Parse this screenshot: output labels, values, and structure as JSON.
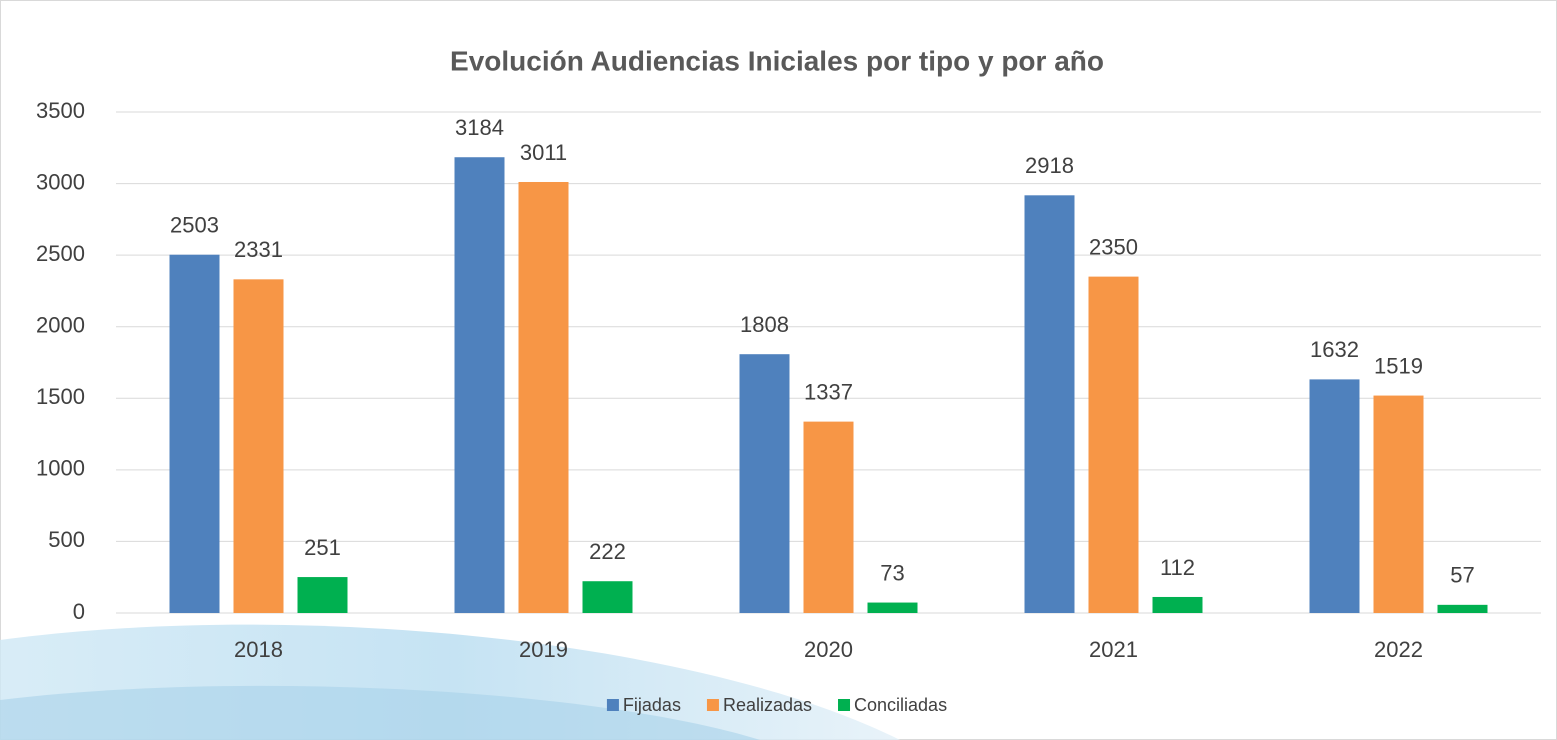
{
  "chart_data": {
    "type": "bar",
    "title": "Evolución Audiencias Iniciales por tipo y por año",
    "categories": [
      "2018",
      "2019",
      "2020",
      "2021",
      "2022"
    ],
    "series": [
      {
        "name": "Fijadas",
        "color": "#4f81bd",
        "values": [
          2503,
          3184,
          1808,
          2918,
          1632
        ]
      },
      {
        "name": "Realizadas",
        "color": "#f79646",
        "values": [
          2331,
          3011,
          1337,
          2350,
          1519
        ]
      },
      {
        "name": "Conciliadas",
        "color": "#00b050",
        "values": [
          251,
          222,
          73,
          112,
          57
        ]
      }
    ],
    "ylim": [
      0,
      3500
    ],
    "yticks": [
      0,
      500,
      1000,
      1500,
      2000,
      2500,
      3000,
      3500
    ],
    "grid": true,
    "legend": "bottom"
  }
}
